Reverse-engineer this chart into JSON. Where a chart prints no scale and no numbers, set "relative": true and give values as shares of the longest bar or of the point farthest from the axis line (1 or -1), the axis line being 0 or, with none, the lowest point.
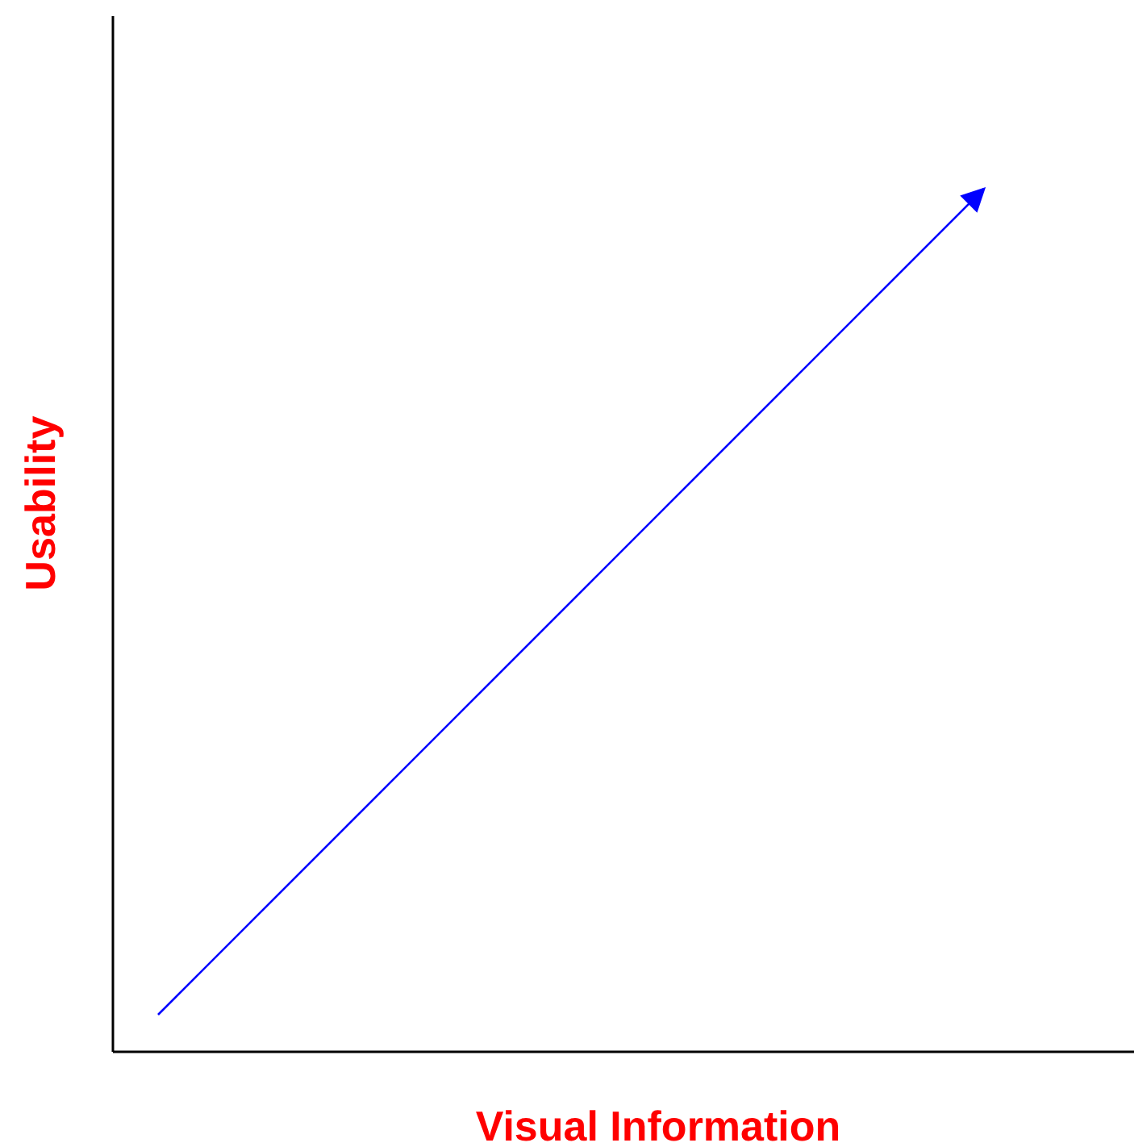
{
  "chart_data": {
    "type": "line",
    "xlabel": "Visual Information",
    "ylabel": "Usability",
    "categories": [
      null,
      null
    ],
    "relative": true,
    "series": [
      {
        "color": "#0000ff",
        "values": [
          0.043,
          1
        ]
      }
    ],
    "marker": "none"
  }
}
